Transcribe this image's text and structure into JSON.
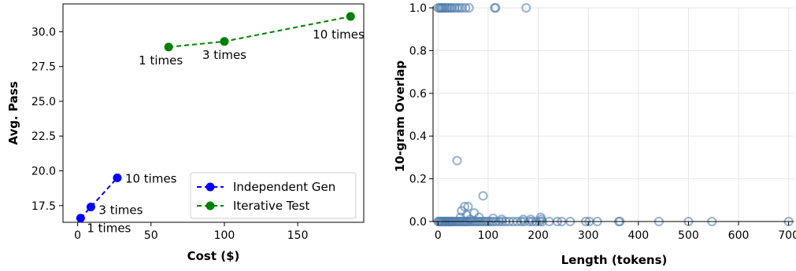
{
  "chart_data": [
    {
      "type": "line",
      "xlabel": "Cost ($)",
      "ylabel": "Avg. Pass",
      "xlim": [
        -10,
        195
      ],
      "ylim": [
        16.3,
        32.0
      ],
      "xticks": [
        0,
        50,
        100,
        150
      ],
      "yticks": [
        17.5,
        20.0,
        22.5,
        25.0,
        27.5,
        30.0
      ],
      "xtick_labels": [
        "0",
        "50",
        "100",
        "150"
      ],
      "ytick_labels": [
        "17.5",
        "20.0",
        "22.5",
        "25.0",
        "27.5",
        "30.0"
      ],
      "legend_position": "lower-right",
      "series": [
        {
          "name": "Independent Gen",
          "color": "#0000ff",
          "x": [
            2,
            9,
            27
          ],
          "y": [
            16.6,
            17.4,
            19.5
          ],
          "labels": [
            "1 times",
            "3 times",
            "10 times"
          ]
        },
        {
          "name": "Iterative Test",
          "color": "#008000",
          "x": [
            62,
            100,
            186
          ],
          "y": [
            28.9,
            29.3,
            31.1
          ],
          "labels": [
            "1 times",
            "3 times",
            "10 times"
          ]
        }
      ]
    },
    {
      "type": "scatter",
      "xlabel": "Length (tokens)",
      "ylabel": "10-gram Overlap",
      "xlim": [
        -10,
        710
      ],
      "ylim": [
        0.0,
        1.0
      ],
      "xticks": [
        0,
        100,
        200,
        300,
        400,
        500,
        600,
        700
      ],
      "yticks": [
        0.0,
        0.2,
        0.4,
        0.6,
        0.8,
        1.0
      ],
      "xtick_labels": [
        "0",
        "100",
        "200",
        "300",
        "400",
        "500",
        "600",
        "700"
      ],
      "ytick_labels": [
        "0.0",
        "0.2",
        "0.4",
        "0.6",
        "0.8",
        "1.0"
      ],
      "grid": true,
      "marker_color": "#4f7cad",
      "points": [
        [
          0,
          1.0
        ],
        [
          3,
          1.0
        ],
        [
          5,
          1.0
        ],
        [
          7,
          1.0
        ],
        [
          9,
          1.0
        ],
        [
          12,
          1.0
        ],
        [
          15,
          1.0
        ],
        [
          18,
          1.0
        ],
        [
          21,
          1.0
        ],
        [
          25,
          1.0
        ],
        [
          28,
          1.0
        ],
        [
          33,
          1.0
        ],
        [
          38,
          1.0
        ],
        [
          43,
          1.0
        ],
        [
          48,
          1.0
        ],
        [
          55,
          1.0
        ],
        [
          62,
          1.0
        ],
        [
          113,
          1.0
        ],
        [
          115,
          1.0
        ],
        [
          176,
          1.0
        ],
        [
          0,
          0.0
        ],
        [
          2,
          0.0
        ],
        [
          4,
          0.0
        ],
        [
          6,
          0.0
        ],
        [
          8,
          0.0
        ],
        [
          10,
          0.0
        ],
        [
          12,
          0.0
        ],
        [
          14,
          0.0
        ],
        [
          16,
          0.0
        ],
        [
          18,
          0.0
        ],
        [
          20,
          0.0
        ],
        [
          22,
          0.0
        ],
        [
          24,
          0.0
        ],
        [
          26,
          0.0
        ],
        [
          28,
          0.0
        ],
        [
          30,
          0.0
        ],
        [
          33,
          0.0
        ],
        [
          36,
          0.0
        ],
        [
          39,
          0.0
        ],
        [
          42,
          0.0
        ],
        [
          45,
          0.0
        ],
        [
          48,
          0.0
        ],
        [
          51,
          0.0
        ],
        [
          54,
          0.0
        ],
        [
          57,
          0.0
        ],
        [
          60,
          0.0
        ],
        [
          64,
          0.0
        ],
        [
          68,
          0.0
        ],
        [
          72,
          0.0
        ],
        [
          76,
          0.0
        ],
        [
          80,
          0.0
        ],
        [
          84,
          0.0
        ],
        [
          88,
          0.0
        ],
        [
          92,
          0.0
        ],
        [
          96,
          0.0
        ],
        [
          100,
          0.0
        ],
        [
          105,
          0.0
        ],
        [
          110,
          0.0
        ],
        [
          116,
          0.0
        ],
        [
          122,
          0.0
        ],
        [
          128,
          0.0
        ],
        [
          135,
          0.0
        ],
        [
          142,
          0.0
        ],
        [
          150,
          0.0
        ],
        [
          158,
          0.0
        ],
        [
          166,
          0.0
        ],
        [
          172,
          0.0
        ],
        [
          182,
          0.0
        ],
        [
          188,
          0.0
        ],
        [
          196,
          0.0
        ],
        [
          203,
          0.0
        ],
        [
          208,
          0.0
        ],
        [
          222,
          0.0
        ],
        [
          238,
          0.0
        ],
        [
          247,
          0.0
        ],
        [
          264,
          0.0
        ],
        [
          295,
          0.0
        ],
        [
          302,
          0.0
        ],
        [
          318,
          0.0
        ],
        [
          361,
          0.0
        ],
        [
          363,
          0.0
        ],
        [
          441,
          0.0
        ],
        [
          500,
          0.0
        ],
        [
          547,
          0.0
        ],
        [
          700,
          0.0
        ],
        [
          38,
          0.285
        ],
        [
          90,
          0.12
        ],
        [
          53,
          0.07
        ],
        [
          60,
          0.07
        ],
        [
          47,
          0.05
        ],
        [
          72,
          0.04
        ],
        [
          57,
          0.03
        ],
        [
          82,
          0.02
        ],
        [
          205,
          0.02
        ],
        [
          110,
          0.015
        ],
        [
          127,
          0.01
        ],
        [
          64,
          0.01
        ],
        [
          45,
          0.02
        ],
        [
          185,
          0.01
        ],
        [
          170,
          0.01
        ],
        [
          206,
          0.01
        ]
      ]
    }
  ]
}
